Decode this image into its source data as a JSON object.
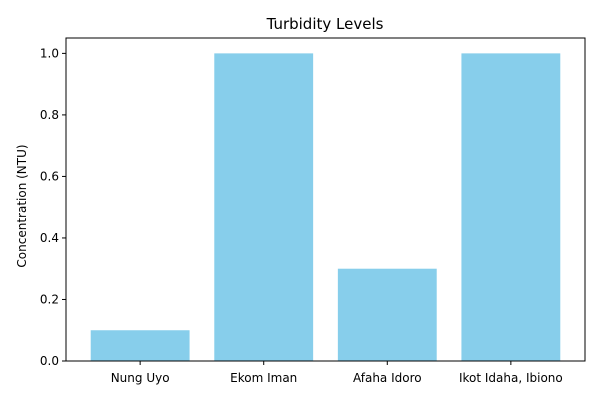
{
  "chart_data": {
    "type": "bar",
    "title": "Turbidity Levels",
    "xlabel": "",
    "ylabel": "Concentration (NTU)",
    "categories": [
      "Nung Uyo",
      "Ekom Iman",
      "Afaha Idoro",
      "Ikot Idaha, Ibiono"
    ],
    "values": [
      0.1,
      1.0,
      0.3,
      1.0
    ],
    "ylim": [
      0,
      1.05
    ],
    "yticks": [
      0.0,
      0.2,
      0.4,
      0.6,
      0.8,
      1.0
    ],
    "ytick_labels": [
      "0.0",
      "0.2",
      "0.4",
      "0.6",
      "0.8",
      "1.0"
    ],
    "bar_color": "#87ceeb",
    "grid": false,
    "legend": "none"
  }
}
